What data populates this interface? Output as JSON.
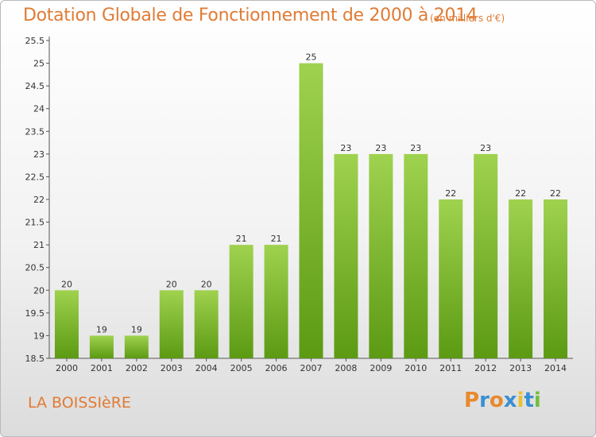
{
  "header": {
    "title": "Dotation Globale de Fonctionnement de 2000 à 2014",
    "subtitle": "(en milliers d'€)"
  },
  "footer": {
    "commune": "LA BOISSIèRE",
    "logo": [
      "P",
      "r",
      "o",
      "x",
      "i",
      "t",
      "i"
    ]
  },
  "colors": {
    "title": "#e07b35",
    "bar_top": "#9fd24f",
    "bar_bottom": "#5c9a13",
    "logo": [
      "#e8892d",
      "#3a8fd1",
      "#e8892d",
      "#3a8fd1",
      "#e8c22d",
      "#3a8fd1",
      "#6fbf3b"
    ]
  },
  "chart_data": {
    "type": "bar",
    "title": "Dotation Globale de Fonctionnement de 2000 à 2014",
    "subtitle": "(en milliers d'€)",
    "categories": [
      "2000",
      "2001",
      "2002",
      "2003",
      "2004",
      "2005",
      "2006",
      "2007",
      "2008",
      "2009",
      "2010",
      "2011",
      "2012",
      "2013",
      "2014"
    ],
    "values": [
      20,
      19,
      19,
      20,
      20,
      21,
      21,
      25,
      23,
      23,
      23,
      22,
      23,
      22,
      22
    ],
    "data_labels": [
      "20",
      "19",
      "19",
      "20",
      "20",
      "21",
      "21",
      "25",
      "23",
      "23",
      "23",
      "22",
      "23",
      "22",
      "22"
    ],
    "ylim": [
      18.5,
      25.5
    ],
    "yticks": [
      "18.5",
      "19",
      "19.5",
      "20",
      "20.5",
      "21",
      "21.5",
      "22",
      "22.5",
      "23",
      "23.5",
      "24",
      "24.5",
      "25",
      "25.5"
    ],
    "xlabel": "",
    "ylabel": "",
    "grid": false,
    "legend": "none"
  }
}
